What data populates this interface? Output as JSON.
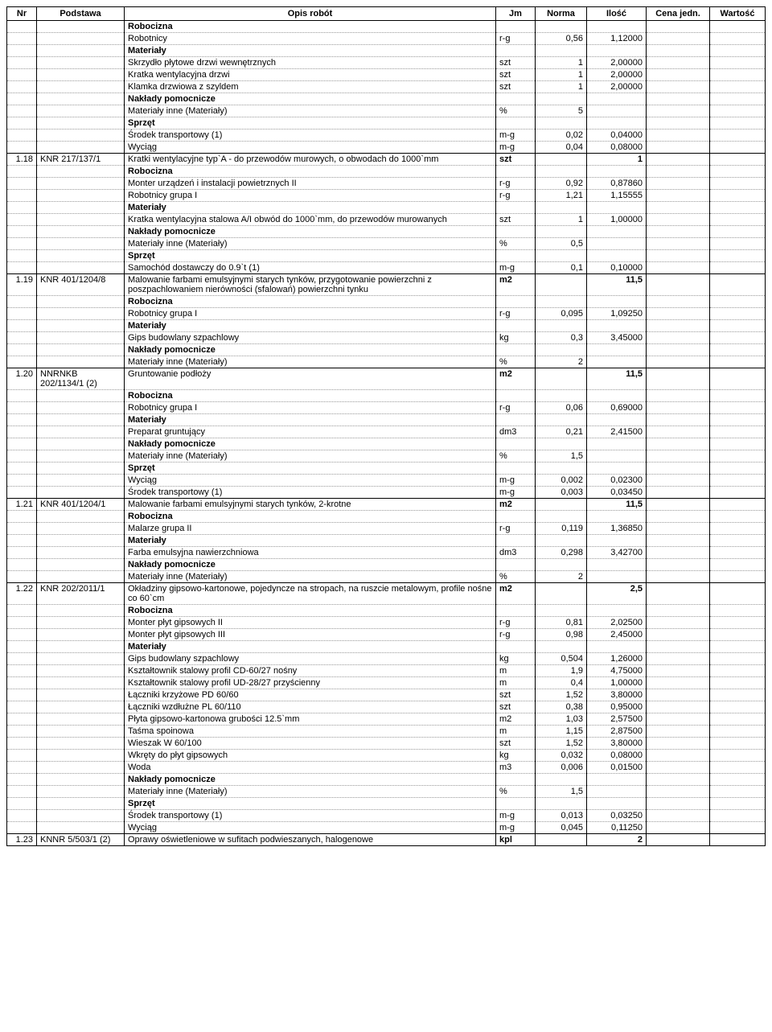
{
  "headers": {
    "nr": "Nr",
    "podstawa": "Podstawa",
    "opis": "Opis robót",
    "jm": "Jm",
    "norma": "Norma",
    "ilosc": "Ilość",
    "cena": "Cena jedn.",
    "wartosc": "Wartość"
  },
  "rows": [
    {
      "nr": "",
      "podstawa": "",
      "opis": "Robocizna",
      "jm": "",
      "norma": "",
      "ilosc": "",
      "bold": true
    },
    {
      "nr": "",
      "podstawa": "",
      "opis": "Robotnicy",
      "jm": "r-g",
      "norma": "0,56",
      "ilosc": "1,12000"
    },
    {
      "nr": "",
      "podstawa": "",
      "opis": "Materiały",
      "jm": "",
      "norma": "",
      "ilosc": "",
      "bold": true
    },
    {
      "nr": "",
      "podstawa": "",
      "opis": "Skrzydło płytowe drzwi wewnętrznych",
      "jm": "szt",
      "norma": "1",
      "ilosc": "2,00000"
    },
    {
      "nr": "",
      "podstawa": "",
      "opis": "Kratka wentylacyjna drzwi",
      "jm": "szt",
      "norma": "1",
      "ilosc": "2,00000"
    },
    {
      "nr": "",
      "podstawa": "",
      "opis": "Klamka drzwiowa z szyldem",
      "jm": "szt",
      "norma": "1",
      "ilosc": "2,00000"
    },
    {
      "nr": "",
      "podstawa": "",
      "opis": "Nakłady pomocnicze",
      "jm": "",
      "norma": "",
      "ilosc": "",
      "bold": true
    },
    {
      "nr": "",
      "podstawa": "",
      "opis": "Materiały inne (Materiały)",
      "jm": "%",
      "norma": "5",
      "ilosc": ""
    },
    {
      "nr": "",
      "podstawa": "",
      "opis": "Sprzęt",
      "jm": "",
      "norma": "",
      "ilosc": "",
      "bold": true
    },
    {
      "nr": "",
      "podstawa": "",
      "opis": "Środek transportowy (1)",
      "jm": "m-g",
      "norma": "0,02",
      "ilosc": "0,04000"
    },
    {
      "nr": "",
      "podstawa": "",
      "opis": "Wyciąg",
      "jm": "m-g",
      "norma": "0,04",
      "ilosc": "0,08000",
      "solid": true
    },
    {
      "nr": "1.18",
      "podstawa": "KNR 217/137/1",
      "opis": "Kratki wentylacyjne typ`A - do przewodów murowych, o obwodach do 1000`mm",
      "jm": "szt",
      "norma": "",
      "ilosc": "1",
      "boldJm": true
    },
    {
      "nr": "",
      "podstawa": "",
      "opis": "Robocizna",
      "jm": "",
      "norma": "",
      "ilosc": "",
      "bold": true
    },
    {
      "nr": "",
      "podstawa": "",
      "opis": "Monter urządzeń i instalacji powietrznych II",
      "jm": "r-g",
      "norma": "0,92",
      "ilosc": "0,87860"
    },
    {
      "nr": "",
      "podstawa": "",
      "opis": "Robotnicy grupa I",
      "jm": "r-g",
      "norma": "1,21",
      "ilosc": "1,15555"
    },
    {
      "nr": "",
      "podstawa": "",
      "opis": "Materiały",
      "jm": "",
      "norma": "",
      "ilosc": "",
      "bold": true
    },
    {
      "nr": "",
      "podstawa": "",
      "opis": "Kratka wentylacyjna stalowa A/I obwód do 1000`mm, do przewodów murowanych",
      "jm": "szt",
      "norma": "1",
      "ilosc": "1,00000"
    },
    {
      "nr": "",
      "podstawa": "",
      "opis": "Nakłady pomocnicze",
      "jm": "",
      "norma": "",
      "ilosc": "",
      "bold": true
    },
    {
      "nr": "",
      "podstawa": "",
      "opis": "Materiały inne (Materiały)",
      "jm": "%",
      "norma": "0,5",
      "ilosc": ""
    },
    {
      "nr": "",
      "podstawa": "",
      "opis": "Sprzęt",
      "jm": "",
      "norma": "",
      "ilosc": "",
      "bold": true
    },
    {
      "nr": "",
      "podstawa": "",
      "opis": "Samochód dostawczy do 0.9`t (1)",
      "jm": "m-g",
      "norma": "0,1",
      "ilosc": "0,10000",
      "solid": true
    },
    {
      "nr": "1.19",
      "podstawa": "KNR 401/1204/8",
      "opis": "Malowanie farbami emulsyjnymi starych tynków, przygotowanie powierzchni z poszpachlowaniem nierówności (sfalowań) powierzchni tynku",
      "jm": "m2",
      "norma": "",
      "ilosc": "11,5",
      "boldJm": true
    },
    {
      "nr": "",
      "podstawa": "",
      "opis": "Robocizna",
      "jm": "",
      "norma": "",
      "ilosc": "",
      "bold": true
    },
    {
      "nr": "",
      "podstawa": "",
      "opis": "Robotnicy grupa I",
      "jm": "r-g",
      "norma": "0,095",
      "ilosc": "1,09250"
    },
    {
      "nr": "",
      "podstawa": "",
      "opis": "Materiały",
      "jm": "",
      "norma": "",
      "ilosc": "",
      "bold": true
    },
    {
      "nr": "",
      "podstawa": "",
      "opis": "Gips budowlany szpachlowy",
      "jm": "kg",
      "norma": "0,3",
      "ilosc": "3,45000"
    },
    {
      "nr": "",
      "podstawa": "",
      "opis": "Nakłady pomocnicze",
      "jm": "",
      "norma": "",
      "ilosc": "",
      "bold": true
    },
    {
      "nr": "",
      "podstawa": "",
      "opis": "Materiały inne (Materiały)",
      "jm": "%",
      "norma": "2",
      "ilosc": "",
      "solid": true
    },
    {
      "nr": "1.20",
      "podstawa": "NNRNKB 202/1134/1 (2)",
      "opis": "Gruntowanie podłoży",
      "jm": "m2",
      "norma": "",
      "ilosc": "11,5",
      "boldJm": true
    },
    {
      "nr": "",
      "podstawa": "",
      "opis": "Robocizna",
      "jm": "",
      "norma": "",
      "ilosc": "",
      "bold": true
    },
    {
      "nr": "",
      "podstawa": "",
      "opis": "Robotnicy grupa I",
      "jm": "r-g",
      "norma": "0,06",
      "ilosc": "0,69000"
    },
    {
      "nr": "",
      "podstawa": "",
      "opis": "Materiały",
      "jm": "",
      "norma": "",
      "ilosc": "",
      "bold": true
    },
    {
      "nr": "",
      "podstawa": "",
      "opis": "Preparat gruntujący",
      "jm": "dm3",
      "norma": "0,21",
      "ilosc": "2,41500"
    },
    {
      "nr": "",
      "podstawa": "",
      "opis": "Nakłady pomocnicze",
      "jm": "",
      "norma": "",
      "ilosc": "",
      "bold": true
    },
    {
      "nr": "",
      "podstawa": "",
      "opis": "Materiały inne (Materiały)",
      "jm": "%",
      "norma": "1,5",
      "ilosc": ""
    },
    {
      "nr": "",
      "podstawa": "",
      "opis": "Sprzęt",
      "jm": "",
      "norma": "",
      "ilosc": "",
      "bold": true
    },
    {
      "nr": "",
      "podstawa": "",
      "opis": "Wyciąg",
      "jm": "m-g",
      "norma": "0,002",
      "ilosc": "0,02300"
    },
    {
      "nr": "",
      "podstawa": "",
      "opis": "Środek transportowy (1)",
      "jm": "m-g",
      "norma": "0,003",
      "ilosc": "0,03450",
      "solid": true
    },
    {
      "nr": "1.21",
      "podstawa": "KNR 401/1204/1",
      "opis": "Malowanie farbami emulsyjnymi starych tynków, 2-krotne",
      "jm": "m2",
      "norma": "",
      "ilosc": "11,5",
      "boldJm": true
    },
    {
      "nr": "",
      "podstawa": "",
      "opis": "Robocizna",
      "jm": "",
      "norma": "",
      "ilosc": "",
      "bold": true
    },
    {
      "nr": "",
      "podstawa": "",
      "opis": "Malarze grupa II",
      "jm": "r-g",
      "norma": "0,119",
      "ilosc": "1,36850"
    },
    {
      "nr": "",
      "podstawa": "",
      "opis": "Materiały",
      "jm": "",
      "norma": "",
      "ilosc": "",
      "bold": true
    },
    {
      "nr": "",
      "podstawa": "",
      "opis": "Farba emulsyjna nawierzchniowa",
      "jm": "dm3",
      "norma": "0,298",
      "ilosc": "3,42700"
    },
    {
      "nr": "",
      "podstawa": "",
      "opis": "Nakłady pomocnicze",
      "jm": "",
      "norma": "",
      "ilosc": "",
      "bold": true
    },
    {
      "nr": "",
      "podstawa": "",
      "opis": "Materiały inne (Materiały)",
      "jm": "%",
      "norma": "2",
      "ilosc": "",
      "solid": true
    },
    {
      "nr": "1.22",
      "podstawa": "KNR 202/2011/1",
      "opis": "Okładziny gipsowo-kartonowe, pojedyncze na stropach, na ruszcie metalowym, profile nośne co 60`cm",
      "jm": "m2",
      "norma": "",
      "ilosc": "2,5",
      "boldJm": true
    },
    {
      "nr": "",
      "podstawa": "",
      "opis": "Robocizna",
      "jm": "",
      "norma": "",
      "ilosc": "",
      "bold": true
    },
    {
      "nr": "",
      "podstawa": "",
      "opis": "Monter płyt gipsowych II",
      "jm": "r-g",
      "norma": "0,81",
      "ilosc": "2,02500"
    },
    {
      "nr": "",
      "podstawa": "",
      "opis": "Monter płyt gipsowych III",
      "jm": "r-g",
      "norma": "0,98",
      "ilosc": "2,45000"
    },
    {
      "nr": "",
      "podstawa": "",
      "opis": "Materiały",
      "jm": "",
      "norma": "",
      "ilosc": "",
      "bold": true
    },
    {
      "nr": "",
      "podstawa": "",
      "opis": "Gips budowlany szpachlowy",
      "jm": "kg",
      "norma": "0,504",
      "ilosc": "1,26000"
    },
    {
      "nr": "",
      "podstawa": "",
      "opis": "Kształtownik stalowy profil CD-60/27 nośny",
      "jm": "m",
      "norma": "1,9",
      "ilosc": "4,75000"
    },
    {
      "nr": "",
      "podstawa": "",
      "opis": "Kształtownik stalowy profil UD-28/27 przyścienny",
      "jm": "m",
      "norma": "0,4",
      "ilosc": "1,00000"
    },
    {
      "nr": "",
      "podstawa": "",
      "opis": "Łączniki krzyżowe PD 60/60",
      "jm": "szt",
      "norma": "1,52",
      "ilosc": "3,80000"
    },
    {
      "nr": "",
      "podstawa": "",
      "opis": "Łączniki wzdłużne PL 60/110",
      "jm": "szt",
      "norma": "0,38",
      "ilosc": "0,95000"
    },
    {
      "nr": "",
      "podstawa": "",
      "opis": "Płyta gipsowo-kartonowa grubości 12.5`mm",
      "jm": "m2",
      "norma": "1,03",
      "ilosc": "2,57500"
    },
    {
      "nr": "",
      "podstawa": "",
      "opis": "Taśma spoinowa",
      "jm": "m",
      "norma": "1,15",
      "ilosc": "2,87500"
    },
    {
      "nr": "",
      "podstawa": "",
      "opis": "Wieszak W 60/100",
      "jm": "szt",
      "norma": "1,52",
      "ilosc": "3,80000"
    },
    {
      "nr": "",
      "podstawa": "",
      "opis": "Wkręty do płyt gipsowych",
      "jm": "kg",
      "norma": "0,032",
      "ilosc": "0,08000"
    },
    {
      "nr": "",
      "podstawa": "",
      "opis": "Woda",
      "jm": "m3",
      "norma": "0,006",
      "ilosc": "0,01500"
    },
    {
      "nr": "",
      "podstawa": "",
      "opis": "Nakłady pomocnicze",
      "jm": "",
      "norma": "",
      "ilosc": "",
      "bold": true
    },
    {
      "nr": "",
      "podstawa": "",
      "opis": "Materiały inne (Materiały)",
      "jm": "%",
      "norma": "1,5",
      "ilosc": ""
    },
    {
      "nr": "",
      "podstawa": "",
      "opis": "Sprzęt",
      "jm": "",
      "norma": "",
      "ilosc": "",
      "bold": true
    },
    {
      "nr": "",
      "podstawa": "",
      "opis": "Środek transportowy (1)",
      "jm": "m-g",
      "norma": "0,013",
      "ilosc": "0,03250"
    },
    {
      "nr": "",
      "podstawa": "",
      "opis": "Wyciąg",
      "jm": "m-g",
      "norma": "0,045",
      "ilosc": "0,11250",
      "solid": true
    },
    {
      "nr": "1.23",
      "podstawa": "KNNR 5/503/1 (2)",
      "opis": "Oprawy oświetleniowe w sufitach podwieszanych, halogenowe",
      "jm": "kpl",
      "norma": "",
      "ilosc": "2",
      "boldJm": true,
      "solid": true
    }
  ]
}
